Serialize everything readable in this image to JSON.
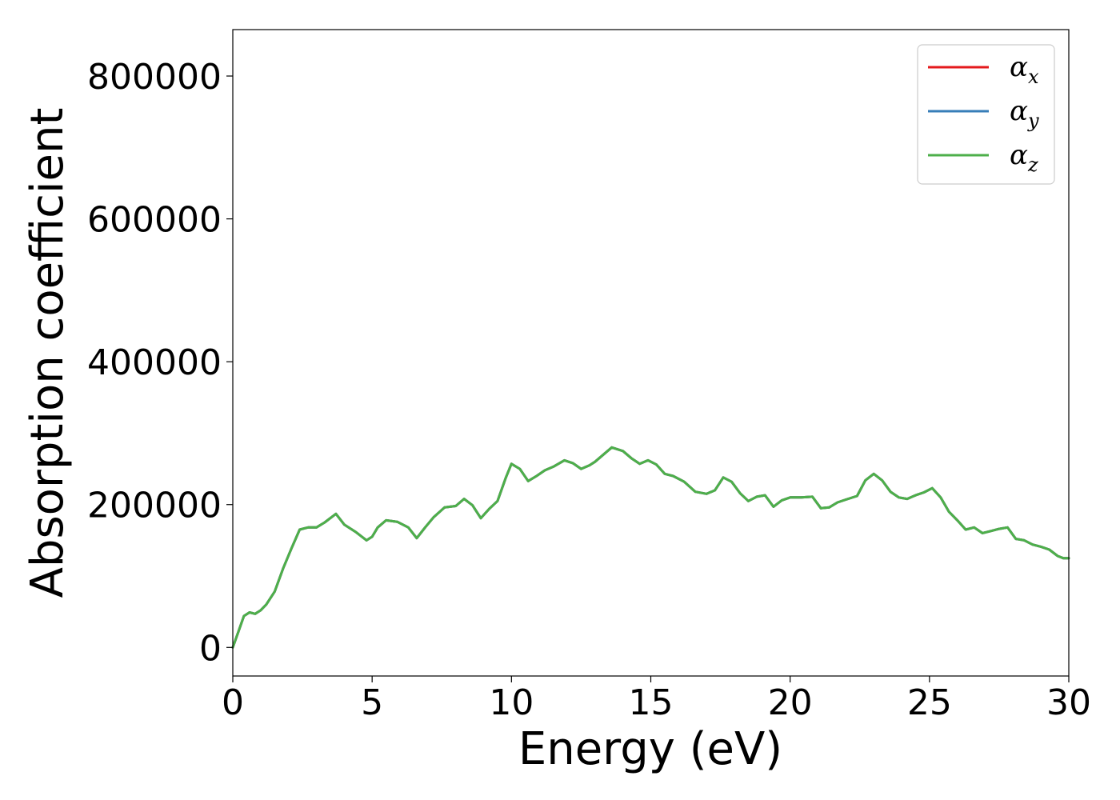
{
  "chart_data": {
    "type": "line",
    "title": "",
    "xlabel": "Energy (eV)",
    "ylabel": "Absorption coefficient",
    "xlim": [
      0,
      30
    ],
    "ylim": [
      -40000,
      865000
    ],
    "xticks": [
      0,
      5,
      10,
      15,
      20,
      25,
      30
    ],
    "xtick_labels": [
      "0",
      "5",
      "10",
      "15",
      "20",
      "25",
      "30"
    ],
    "yticks": [
      0,
      200000,
      400000,
      600000,
      800000
    ],
    "ytick_labels": [
      "0",
      "200000",
      "400000",
      "600000",
      "800000"
    ],
    "grid": false,
    "legend_position": "top-right",
    "legend": [
      {
        "symbol": "α",
        "subscript": "x",
        "color": "#e41a1c"
      },
      {
        "symbol": "α",
        "subscript": "y",
        "color": "#377eb8"
      },
      {
        "symbol": "α",
        "subscript": "z",
        "color": "#4daf4a"
      }
    ],
    "x": [
      0.0,
      0.2,
      0.4,
      0.6,
      0.8,
      1.0,
      1.2,
      1.5,
      1.8,
      2.1,
      2.4,
      2.7,
      3.0,
      3.3,
      3.7,
      4.0,
      4.4,
      4.8,
      5.0,
      5.2,
      5.5,
      5.9,
      6.3,
      6.6,
      6.9,
      7.2,
      7.6,
      8.0,
      8.3,
      8.6,
      8.9,
      9.2,
      9.5,
      9.8,
      10.0,
      10.3,
      10.6,
      10.9,
      11.2,
      11.5,
      11.9,
      12.2,
      12.5,
      12.8,
      13.0,
      13.3,
      13.6,
      14.0,
      14.3,
      14.6,
      14.9,
      15.2,
      15.5,
      15.8,
      16.2,
      16.6,
      17.0,
      17.3,
      17.6,
      17.9,
      18.2,
      18.5,
      18.8,
      19.1,
      19.4,
      19.7,
      20.0,
      20.4,
      20.8,
      21.1,
      21.4,
      21.7,
      22.0,
      22.4,
      22.7,
      23.0,
      23.3,
      23.6,
      23.9,
      24.2,
      24.5,
      24.8,
      25.1,
      25.4,
      25.7,
      26.0,
      26.3,
      26.6,
      26.9,
      27.2,
      27.5,
      27.8,
      28.1,
      28.4,
      28.7,
      29.0,
      29.3,
      29.6,
      29.8,
      30.0
    ],
    "series": [
      {
        "name": "αx",
        "color": "#e41a1c",
        "values": [
          0,
          22000,
          44000,
          49000,
          47000,
          52000,
          60000,
          78000,
          110000,
          138000,
          165000,
          168000,
          168000,
          175000,
          187000,
          172000,
          162000,
          150000,
          155000,
          168000,
          178000,
          176000,
          168000,
          153000,
          168000,
          182000,
          196000,
          198000,
          208000,
          199000,
          181000,
          194000,
          205000,
          238000,
          257000,
          250000,
          233000,
          240000,
          248000,
          253000,
          262000,
          258000,
          250000,
          255000,
          260000,
          270000,
          280000,
          275000,
          265000,
          257000,
          262000,
          256000,
          243000,
          240000,
          232000,
          218000,
          215000,
          220000,
          238000,
          232000,
          216000,
          205000,
          211000,
          213000,
          197000,
          206000,
          210000,
          210000,
          211000,
          195000,
          196000,
          203000,
          207000,
          212000,
          234000,
          243000,
          234000,
          218000,
          210000,
          208000,
          213000,
          217000,
          223000,
          210000,
          190000,
          178000,
          165000,
          168000,
          160000,
          163000,
          166000,
          168000,
          152000,
          150000,
          144000,
          141000,
          137000,
          128000,
          125000,
          125000
        ]
      },
      {
        "name": "αy",
        "color": "#377eb8",
        "values": [
          0,
          22000,
          44000,
          49000,
          47000,
          52000,
          60000,
          78000,
          110000,
          138000,
          165000,
          168000,
          168000,
          175000,
          187000,
          172000,
          162000,
          150000,
          155000,
          168000,
          178000,
          176000,
          168000,
          153000,
          168000,
          182000,
          196000,
          198000,
          208000,
          199000,
          181000,
          194000,
          205000,
          238000,
          257000,
          250000,
          233000,
          240000,
          248000,
          253000,
          262000,
          258000,
          250000,
          255000,
          260000,
          270000,
          280000,
          275000,
          265000,
          257000,
          262000,
          256000,
          243000,
          240000,
          232000,
          218000,
          215000,
          220000,
          238000,
          232000,
          216000,
          205000,
          211000,
          213000,
          197000,
          206000,
          210000,
          210000,
          211000,
          195000,
          196000,
          203000,
          207000,
          212000,
          234000,
          243000,
          234000,
          218000,
          210000,
          208000,
          213000,
          217000,
          223000,
          210000,
          190000,
          178000,
          165000,
          168000,
          160000,
          163000,
          166000,
          168000,
          152000,
          150000,
          144000,
          141000,
          137000,
          128000,
          125000,
          125000
        ]
      },
      {
        "name": "αz",
        "color": "#4daf4a",
        "values": [
          0,
          22000,
          44000,
          49000,
          47000,
          52000,
          60000,
          78000,
          110000,
          138000,
          165000,
          168000,
          168000,
          175000,
          187000,
          172000,
          162000,
          150000,
          155000,
          168000,
          178000,
          176000,
          168000,
          153000,
          168000,
          182000,
          196000,
          198000,
          208000,
          199000,
          181000,
          194000,
          205000,
          238000,
          257000,
          250000,
          233000,
          240000,
          248000,
          253000,
          262000,
          258000,
          250000,
          255000,
          260000,
          270000,
          280000,
          275000,
          265000,
          257000,
          262000,
          256000,
          243000,
          240000,
          232000,
          218000,
          215000,
          220000,
          238000,
          232000,
          216000,
          205000,
          211000,
          213000,
          197000,
          206000,
          210000,
          210000,
          211000,
          195000,
          196000,
          203000,
          207000,
          212000,
          234000,
          243000,
          234000,
          218000,
          210000,
          208000,
          213000,
          217000,
          223000,
          210000,
          190000,
          178000,
          165000,
          168000,
          160000,
          163000,
          166000,
          168000,
          152000,
          150000,
          144000,
          141000,
          137000,
          128000,
          125000,
          125000
        ]
      }
    ]
  }
}
